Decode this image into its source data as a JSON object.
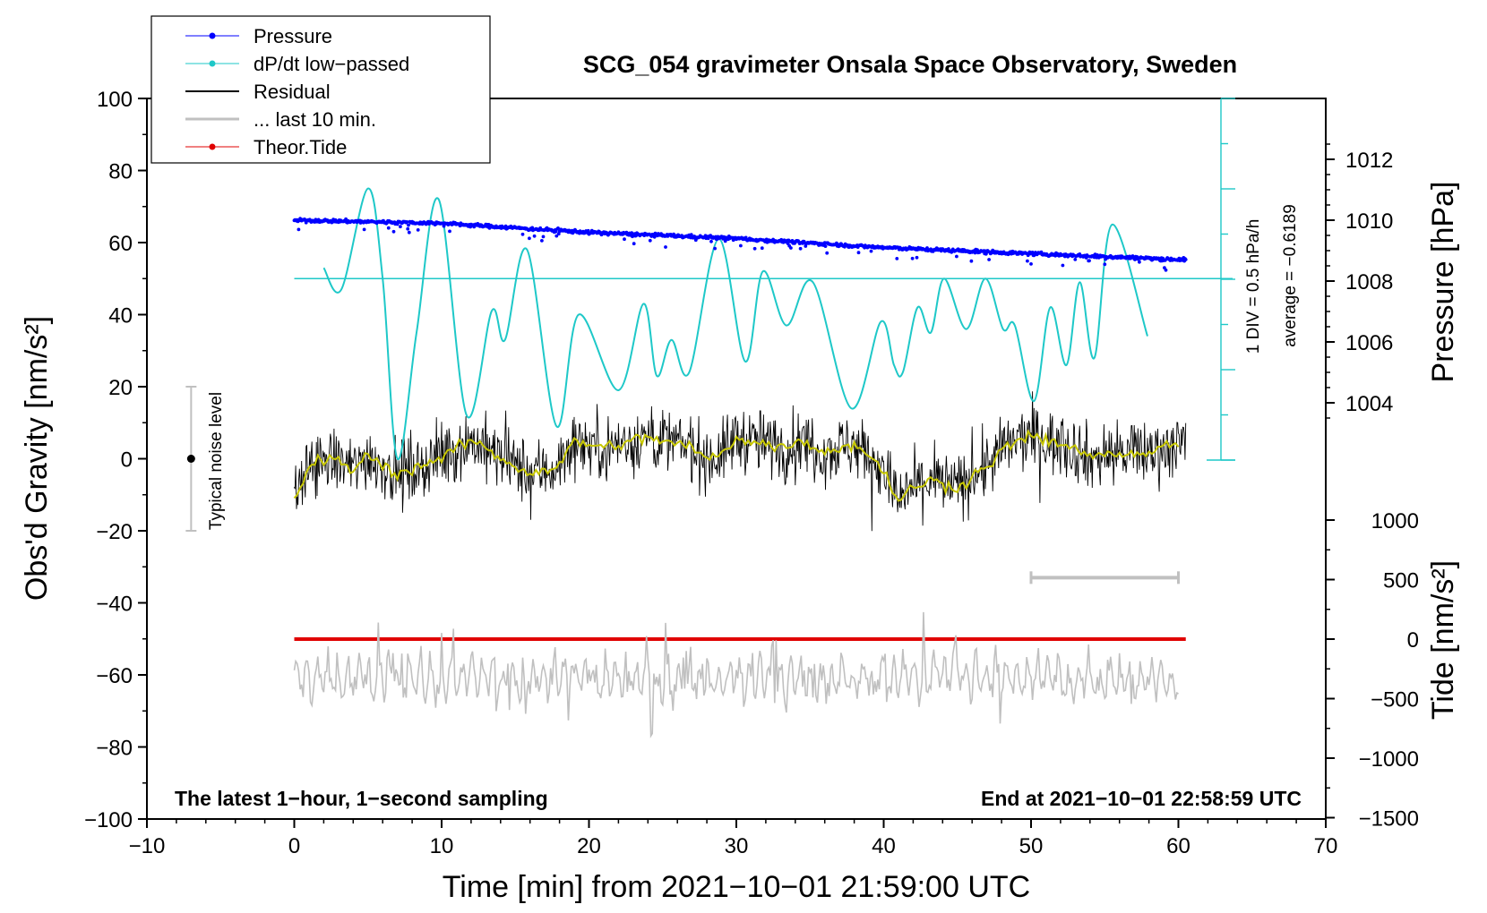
{
  "chart_data": {
    "type": "line",
    "title": "SCG_054 gravimeter Onsala Space Observatory, Sweden",
    "xlabel": "Time [min] from 2021−10−01 21:59:00 UTC",
    "xlim": [
      -10,
      70
    ],
    "xticks": [
      "−10",
      "0",
      "10",
      "20",
      "30",
      "40",
      "50",
      "60",
      "70"
    ],
    "ylabel_left": "Obs'd Gravity [nm/s²]",
    "ylim_left": [
      -100,
      100
    ],
    "yticks_left": [
      "−100",
      "−80",
      "−60",
      "−40",
      "−20",
      "0",
      "20",
      "40",
      "60",
      "80",
      "100"
    ],
    "ylabel_pressure": "Pressure [hPa]",
    "pressure_ticks": [
      "1004",
      "1006",
      "1008",
      "1010",
      "1012"
    ],
    "ylabel_tide": "Tide [nm/s²]",
    "tide_ticks": [
      "−1500",
      "−1000",
      "−500",
      "0",
      "500",
      "1000"
    ],
    "legend": {
      "location": "top-left",
      "entries": [
        {
          "label": "Pressure",
          "color": "#0000ff",
          "marker": "dot"
        },
        {
          "label": "dP/dt low−passed",
          "color": "#1ec8c8",
          "marker": "dot"
        },
        {
          "label": "Residual",
          "color": "#000000",
          "marker": "line"
        },
        {
          "label": "... last 10 min.",
          "color": "#c0c0c0",
          "marker": "line"
        },
        {
          "label": "Theor.Tide",
          "color": "#e00000",
          "marker": "dot"
        }
      ]
    },
    "annotations": {
      "bottom_left": "The latest 1−hour, 1−second sampling",
      "bottom_right": "End at 2021−10−01 22:58:59 UTC",
      "noise": "Typical noise level",
      "div_label": "1 DIV = 0.5 hPa/h",
      "average_label": "average = −0.6189"
    },
    "noise_bar": {
      "x": -7,
      "center": 0,
      "low": -20,
      "high": 20
    },
    "last10_bar": {
      "x_start": 50,
      "x_end": 60,
      "y": -33
    },
    "dpdt_baseline": 50,
    "series": [
      {
        "name": "Pressure",
        "unit": "hPa",
        "x": [
          0,
          10,
          20,
          30,
          40,
          50,
          60.5
        ],
        "values": [
          1010.0,
          1009.9,
          1009.6,
          1009.4,
          1009.1,
          1008.9,
          1008.7
        ]
      },
      {
        "name": "dP/dt low-passed",
        "unit": "nm/s²-equivalent",
        "x": [
          2,
          3.2,
          5,
          6,
          7,
          8.3,
          9.8,
          11.7,
          13.4,
          14.3,
          15.8,
          17.8,
          19.3,
          22,
          23.7,
          24.6,
          25.6,
          26.8,
          28.8,
          30.6,
          31.8,
          33.4,
          35.2,
          37.8,
          39.8,
          40.7,
          41.3,
          42.3,
          43.2,
          44.1,
          45.6,
          46.9,
          48.1,
          48.9,
          50.2,
          51.3,
          52.4,
          53.3,
          54.3,
          55.5,
          57.9
        ],
        "values": [
          53,
          47,
          75,
          50,
          0,
          35,
          72,
          12,
          41,
          33,
          58,
          9,
          40,
          19,
          43,
          23,
          33,
          24,
          61,
          27,
          52,
          37,
          49,
          14,
          38,
          26,
          24,
          42,
          35,
          50,
          36,
          50,
          36,
          37,
          16,
          42,
          26,
          49,
          28,
          65,
          34
        ]
      },
      {
        "name": "Residual smoothed",
        "unit": "nm/s²",
        "x": [
          0,
          1,
          2,
          3,
          4,
          5,
          6,
          7,
          8,
          9,
          10,
          11,
          12,
          13,
          14,
          15,
          16,
          17,
          18,
          19,
          20,
          21,
          22,
          23,
          24,
          25,
          26,
          27,
          28,
          29,
          30,
          31,
          32,
          33,
          34,
          35,
          36,
          37,
          38,
          39,
          40,
          41,
          42,
          43,
          44,
          45,
          46,
          47,
          48,
          49,
          50,
          51,
          52,
          53,
          54,
          55,
          56,
          57,
          58,
          59,
          60
        ],
        "values": [
          -12,
          -2,
          0,
          -1,
          -3,
          1,
          -2,
          -4,
          -3,
          -1,
          0,
          3,
          5,
          3,
          0,
          -2,
          -4,
          -3,
          -2,
          5,
          4,
          3,
          4,
          5,
          6,
          5,
          4,
          3,
          0,
          1,
          6,
          5,
          4,
          3,
          5,
          4,
          2,
          3,
          4,
          1,
          -3,
          -12,
          -8,
          -6,
          -7,
          -8,
          -5,
          -2,
          2,
          5,
          6,
          5,
          4,
          3,
          0,
          1,
          2,
          1,
          2,
          3,
          4
        ]
      },
      {
        "name": "Theor.Tide",
        "unit": "nm/s²",
        "x": [
          0,
          60.5
        ],
        "values": [
          0,
          0
        ]
      }
    ]
  }
}
